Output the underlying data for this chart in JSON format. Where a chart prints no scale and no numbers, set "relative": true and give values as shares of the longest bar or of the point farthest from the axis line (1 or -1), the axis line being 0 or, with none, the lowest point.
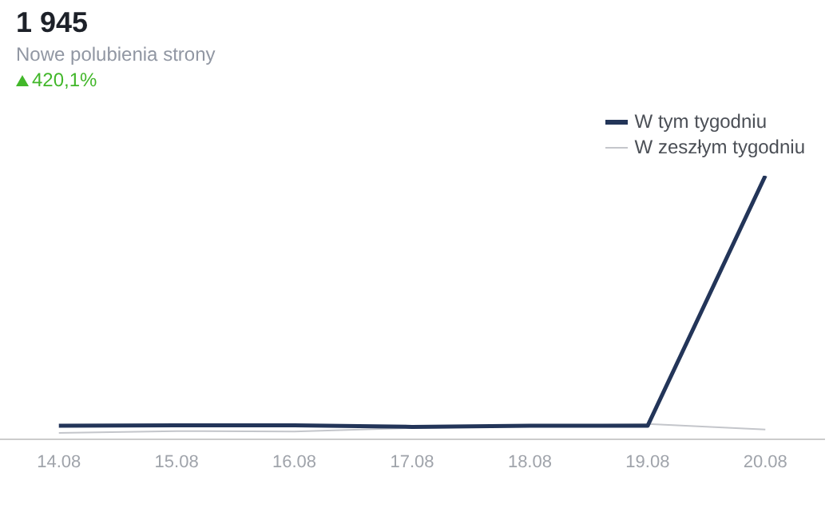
{
  "chart_data": {
    "type": "line",
    "title": "1 945",
    "subtitle": "Nowe polubienia strony",
    "annotations": [
      "420,1%"
    ],
    "categories": [
      "14.08",
      "15.08",
      "16.08",
      "17.08",
      "18.08",
      "19.08",
      "20.08"
    ],
    "relative": true,
    "grid": false,
    "legend": "top right",
    "marker": "none",
    "series": [
      {
        "name": "W tym tygodniu",
        "color": "#233559",
        "values": [
          0.05,
          0.052,
          0.052,
          0.046,
          0.05,
          0.05,
          1
        ]
      },
      {
        "name": "W zeszłym tygodniu",
        "color": "#c4c6cb",
        "values": [
          0.023,
          0.03,
          0.028,
          0.042,
          0.048,
          0.057,
          0.036
        ]
      }
    ]
  }
}
